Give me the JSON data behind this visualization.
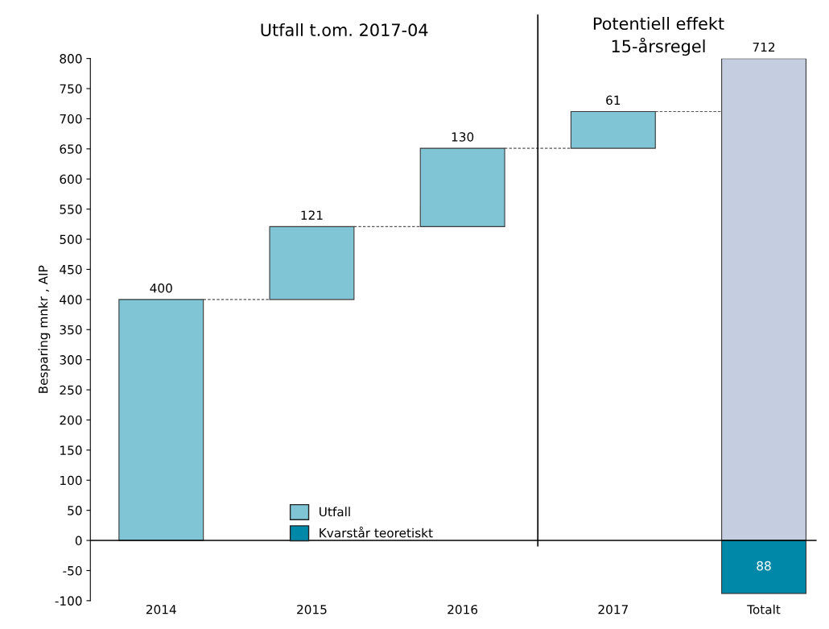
{
  "chart_data": {
    "type": "bar",
    "ylabel": "Besparing mnkr , AIP",
    "categories": [
      "2014",
      "2015",
      "2016",
      "2017",
      "Totalt"
    ],
    "series": [
      {
        "name": "Utfall",
        "color": "#80c5d5",
        "values": [
          400,
          121,
          130,
          61,
          null
        ],
        "base": [
          0,
          400,
          521,
          651,
          null
        ],
        "value_labels": [
          "400",
          "121",
          "130",
          "61",
          null
        ]
      },
      {
        "color": "#c4cee0",
        "values": [
          null,
          null,
          null,
          null,
          800
        ]
      },
      {
        "name": "Kvarstår teoretiskt",
        "color": "#0088a8",
        "values": [
          null,
          null,
          null,
          null,
          -88
        ]
      }
    ],
    "ylim": [
      -100,
      800
    ],
    "yticks": [
      -100,
      -50,
      0,
      50,
      100,
      150,
      200,
      250,
      300,
      350,
      400,
      450,
      500,
      550,
      600,
      650,
      700,
      750,
      800
    ],
    "ref_lines": [
      {
        "axis": "y",
        "value": 0,
        "color": "#000000"
      }
    ],
    "annotations": [
      "Utfall t.om. 2017-04",
      "Potentiell effekt\n15-årsregel",
      {
        "text": "712",
        "x": "Totalt",
        "y": 800
      },
      "88"
    ],
    "legend": "bottom",
    "grid": false
  }
}
